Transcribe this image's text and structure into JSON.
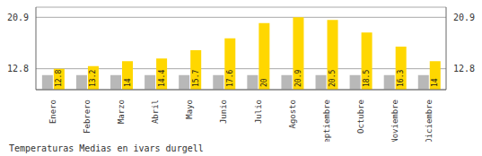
{
  "chart_data": {
    "type": "bar",
    "title": "Temperaturas Medias en ivars durgell",
    "categories": [
      "Enero",
      "Febrero",
      "Marzo",
      "Abril",
      "Mayo",
      "Junio",
      "Julio",
      "Agosto",
      "Septiembre",
      "Octubre",
      "Noviembre",
      "Diciembre"
    ],
    "series": [
      {
        "color": "#B8B8B8",
        "values": [
          11.8,
          11.8,
          11.8,
          11.8,
          11.8,
          11.8,
          11.8,
          11.8,
          11.8,
          11.8,
          11.8,
          11.8
        ]
      },
      {
        "color": "#FFD700",
        "values": [
          12.8,
          13.2,
          14.0,
          14.4,
          15.7,
          17.6,
          20.0,
          20.9,
          20.5,
          18.5,
          16.3,
          14.0
        ],
        "data_labels": true
      }
    ],
    "ylim": [
      9.5,
      22.5
    ],
    "yticks": [
      12.8,
      20.9
    ],
    "y2lim": [
      9.5,
      22.5
    ],
    "y2ticks": [
      12.8,
      20.9
    ],
    "grid": true
  }
}
